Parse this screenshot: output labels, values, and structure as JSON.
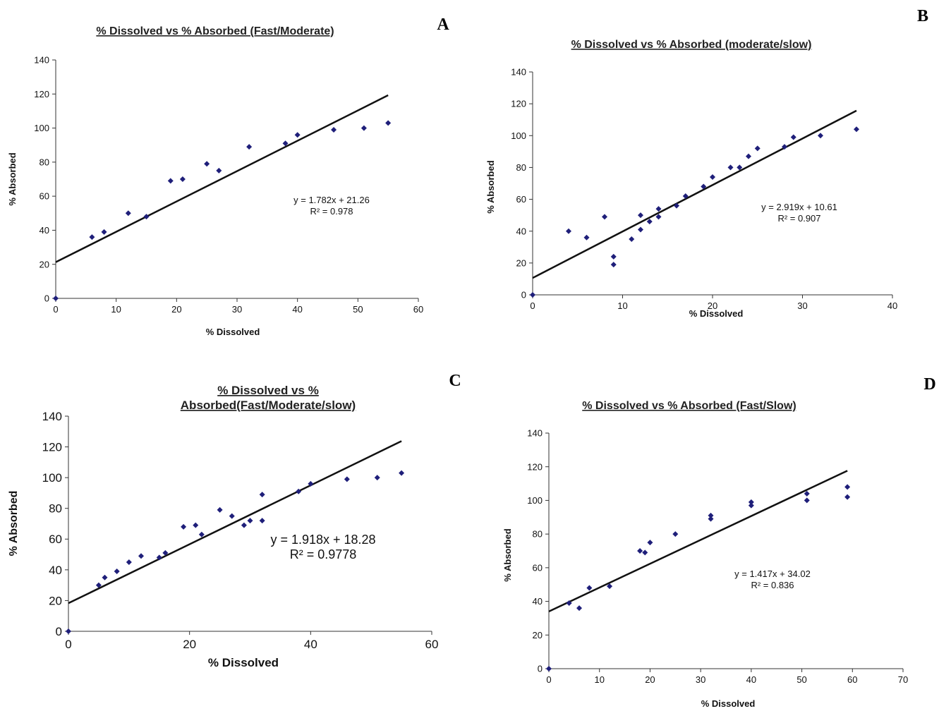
{
  "chart_data": [
    {
      "panel": "A",
      "type": "scatter",
      "title": "% Dissolved vs % Absorbed (Fast/Moderate)",
      "xlabel": "% Dissolved",
      "ylabel": "% Absorbed",
      "xlim": [
        0,
        60
      ],
      "ylim": [
        0,
        140
      ],
      "xticks": [
        0,
        10,
        20,
        30,
        40,
        50,
        60
      ],
      "yticks": [
        0,
        20,
        40,
        60,
        80,
        100,
        120,
        140
      ],
      "points": [
        [
          0,
          0
        ],
        [
          6,
          36
        ],
        [
          8,
          39
        ],
        [
          12,
          50
        ],
        [
          15,
          48
        ],
        [
          19,
          69
        ],
        [
          21,
          70
        ],
        [
          25,
          79
        ],
        [
          27,
          75
        ],
        [
          32,
          89
        ],
        [
          38,
          91
        ],
        [
          40,
          96
        ],
        [
          46,
          99
        ],
        [
          51,
          100
        ],
        [
          55,
          103
        ]
      ],
      "trendline": {
        "slope": 1.782,
        "intercept": 21.26,
        "x_range": [
          0,
          55
        ]
      },
      "equation": "y = 1.782x + 21.26",
      "r2": "R² = 0.978",
      "marker_color": "#1f1f7a"
    },
    {
      "panel": "B",
      "type": "scatter",
      "title": "% Dissolved vs % Absorbed (moderate/slow)",
      "xlabel": "% Dissolved",
      "ylabel": "% Absorbed",
      "xlim": [
        0,
        40
      ],
      "ylim": [
        0,
        140
      ],
      "xticks": [
        0,
        10,
        20,
        30,
        40
      ],
      "yticks": [
        0,
        20,
        40,
        60,
        80,
        100,
        120,
        140
      ],
      "points": [
        [
          0,
          0
        ],
        [
          4,
          40
        ],
        [
          6,
          36
        ],
        [
          8,
          49
        ],
        [
          9,
          19
        ],
        [
          9,
          24
        ],
        [
          11,
          35
        ],
        [
          12,
          41
        ],
        [
          12,
          50
        ],
        [
          13,
          46
        ],
        [
          14,
          49
        ],
        [
          14,
          54
        ],
        [
          16,
          56
        ],
        [
          17,
          62
        ],
        [
          19,
          68
        ],
        [
          20,
          74
        ],
        [
          22,
          80
        ],
        [
          23,
          80
        ],
        [
          24,
          87
        ],
        [
          25,
          92
        ],
        [
          28,
          93
        ],
        [
          29,
          99
        ],
        [
          32,
          100
        ],
        [
          36,
          104
        ]
      ],
      "trendline": {
        "slope": 2.919,
        "intercept": 10.61,
        "x_range": [
          0,
          36
        ]
      },
      "equation": "y = 2.919x + 10.61",
      "r2": "R² = 0.907",
      "marker_color": "#1f1f7a"
    },
    {
      "panel": "C",
      "type": "scatter",
      "title": "% Dissolved vs % Absorbed(Fast/Moderate/slow)",
      "title_lines": [
        "% Dissolved vs %",
        "Absorbed(Fast/Moderate/slow)"
      ],
      "xlabel": "% Dissolved",
      "ylabel": "% Absorbed",
      "xlim": [
        0,
        60
      ],
      "ylim": [
        0,
        140
      ],
      "xticks": [
        0,
        20,
        40,
        60
      ],
      "yticks": [
        0,
        20,
        40,
        60,
        80,
        100,
        120,
        140
      ],
      "points": [
        [
          0,
          0
        ],
        [
          5,
          30
        ],
        [
          6,
          35
        ],
        [
          8,
          39
        ],
        [
          10,
          45
        ],
        [
          12,
          49
        ],
        [
          15,
          48
        ],
        [
          16,
          51
        ],
        [
          19,
          68
        ],
        [
          21,
          69
        ],
        [
          22,
          63
        ],
        [
          25,
          79
        ],
        [
          27,
          75
        ],
        [
          29,
          69
        ],
        [
          30,
          72
        ],
        [
          32,
          89
        ],
        [
          32,
          72
        ],
        [
          38,
          91
        ],
        [
          40,
          96
        ],
        [
          46,
          99
        ],
        [
          51,
          100
        ],
        [
          55,
          103
        ]
      ],
      "trendline": {
        "slope": 1.918,
        "intercept": 18.28,
        "x_range": [
          0,
          55
        ]
      },
      "equation": "y = 1.918x + 18.28",
      "r2": "R² = 0.9778",
      "marker_color": "#1f1f7a"
    },
    {
      "panel": "D",
      "type": "scatter",
      "title": "% Dissolved vs % Absorbed (Fast/Slow)",
      "xlabel": "% Dissolved",
      "ylabel": "% Absorbed",
      "xlim": [
        0,
        70
      ],
      "ylim": [
        0,
        140
      ],
      "xticks": [
        0,
        10,
        20,
        30,
        40,
        50,
        60,
        70
      ],
      "yticks": [
        0,
        20,
        40,
        60,
        80,
        100,
        120,
        140
      ],
      "points": [
        [
          0,
          0
        ],
        [
          4,
          39
        ],
        [
          6,
          36
        ],
        [
          8,
          48
        ],
        [
          12,
          49
        ],
        [
          18,
          70
        ],
        [
          19,
          69
        ],
        [
          20,
          75
        ],
        [
          25,
          80
        ],
        [
          32,
          89
        ],
        [
          32,
          91
        ],
        [
          40,
          97
        ],
        [
          40,
          99
        ],
        [
          51,
          100
        ],
        [
          51,
          104
        ],
        [
          59,
          102
        ],
        [
          59,
          108
        ]
      ],
      "trendline": {
        "slope": 1.417,
        "intercept": 34.02,
        "x_range": [
          0,
          59
        ]
      },
      "equation": "y = 1.417x + 34.02",
      "r2": "R² = 0.836",
      "marker_color": "#1f1f7a"
    }
  ]
}
